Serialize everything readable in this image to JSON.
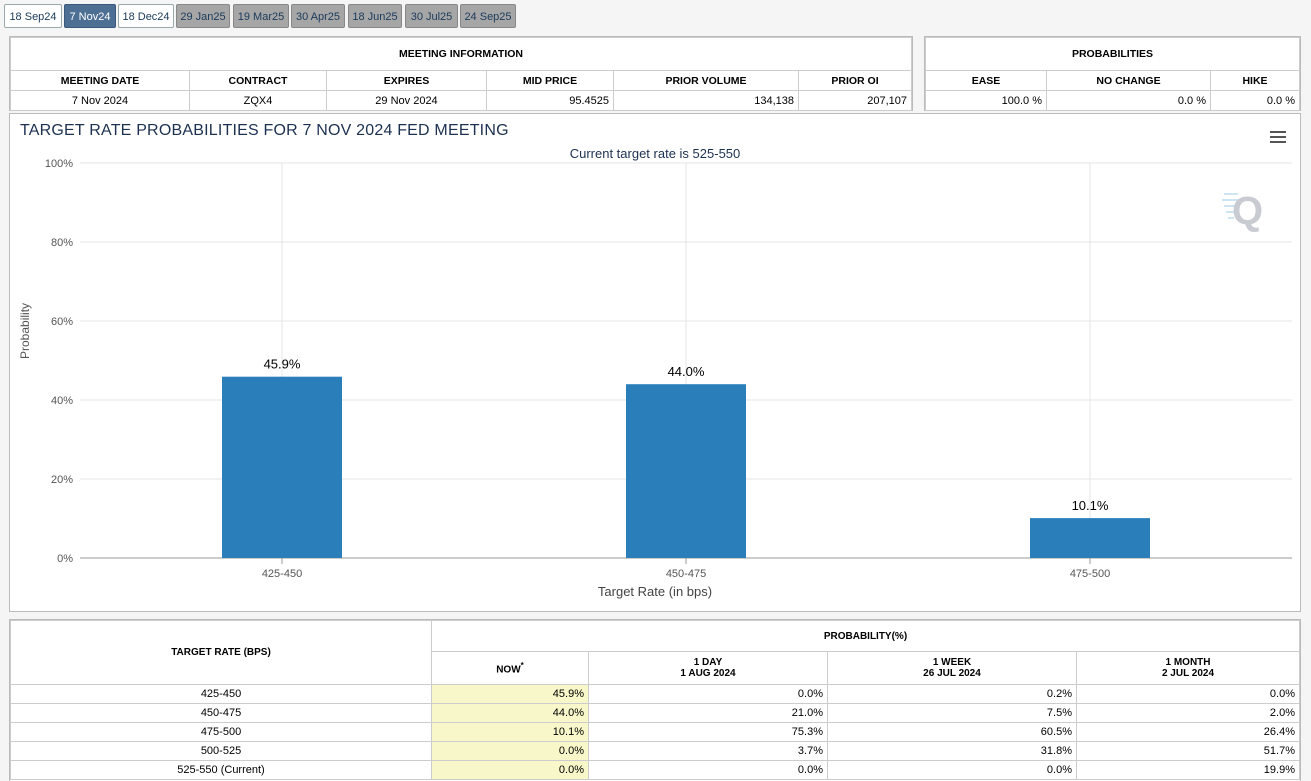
{
  "tabs": [
    {
      "label": "18 Sep24",
      "style": "white"
    },
    {
      "label": "7 Nov24",
      "style": "active"
    },
    {
      "label": "18 Dec24",
      "style": "white"
    },
    {
      "label": "29 Jan25",
      "style": "grey"
    },
    {
      "label": "19 Mar25",
      "style": "grey"
    },
    {
      "label": "30 Apr25",
      "style": "grey"
    },
    {
      "label": "18 Jun25",
      "style": "grey"
    },
    {
      "label": "30 Jul25",
      "style": "grey"
    },
    {
      "label": "24 Sep25",
      "style": "grey"
    }
  ],
  "meeting_info": {
    "title": "MEETING INFORMATION",
    "headers": [
      "MEETING DATE",
      "CONTRACT",
      "EXPIRES",
      "MID PRICE",
      "PRIOR VOLUME",
      "PRIOR OI"
    ],
    "values": [
      "7 Nov 2024",
      "ZQX4",
      "29 Nov 2024",
      "95.4525",
      "134,138",
      "207,107"
    ]
  },
  "probabilities": {
    "title": "PROBABILITIES",
    "headers": [
      "EASE",
      "NO CHANGE",
      "HIKE"
    ],
    "values": [
      "100.0 %",
      "0.0 %",
      "0.0 %"
    ]
  },
  "chart_data": {
    "type": "bar",
    "title": "TARGET RATE PROBABILITIES FOR 7 NOV 2024 FED MEETING",
    "subtitle": "Current target rate is 525-550",
    "categories": [
      "425-450",
      "450-475",
      "475-500"
    ],
    "values": [
      45.9,
      44.0,
      10.1
    ],
    "data_labels": [
      "45.9%",
      "44.0%",
      "10.1%"
    ],
    "xlabel": "Target Rate (in bps)",
    "ylabel": "Probability",
    "ylim": [
      0,
      100
    ],
    "yticks": [
      "0%",
      "20%",
      "40%",
      "60%",
      "80%",
      "100%"
    ],
    "grid": true,
    "bar_color": "#2a7fba"
  },
  "prob_table": {
    "target_header": "TARGET RATE (BPS)",
    "group_header": "PROBABILITY(%)",
    "col_now": "NOW",
    "col_now_mark": "*",
    "col_1day": [
      "1 DAY",
      "1 AUG 2024"
    ],
    "col_1week": [
      "1 WEEK",
      "26 JUL 2024"
    ],
    "col_1month": [
      "1 MONTH",
      "2 JUL 2024"
    ],
    "rows": [
      {
        "rate": "425-450",
        "now": "45.9%",
        "d1": "0.0%",
        "w1": "0.2%",
        "m1": "0.0%"
      },
      {
        "rate": "450-475",
        "now": "44.0%",
        "d1": "21.0%",
        "w1": "7.5%",
        "m1": "2.0%"
      },
      {
        "rate": "475-500",
        "now": "10.1%",
        "d1": "75.3%",
        "w1": "60.5%",
        "m1": "26.4%"
      },
      {
        "rate": "500-525",
        "now": "0.0%",
        "d1": "3.7%",
        "w1": "31.8%",
        "m1": "51.7%"
      },
      {
        "rate": "525-550 (Current)",
        "now": "0.0%",
        "d1": "0.0%",
        "w1": "0.0%",
        "m1": "19.9%"
      }
    ]
  }
}
